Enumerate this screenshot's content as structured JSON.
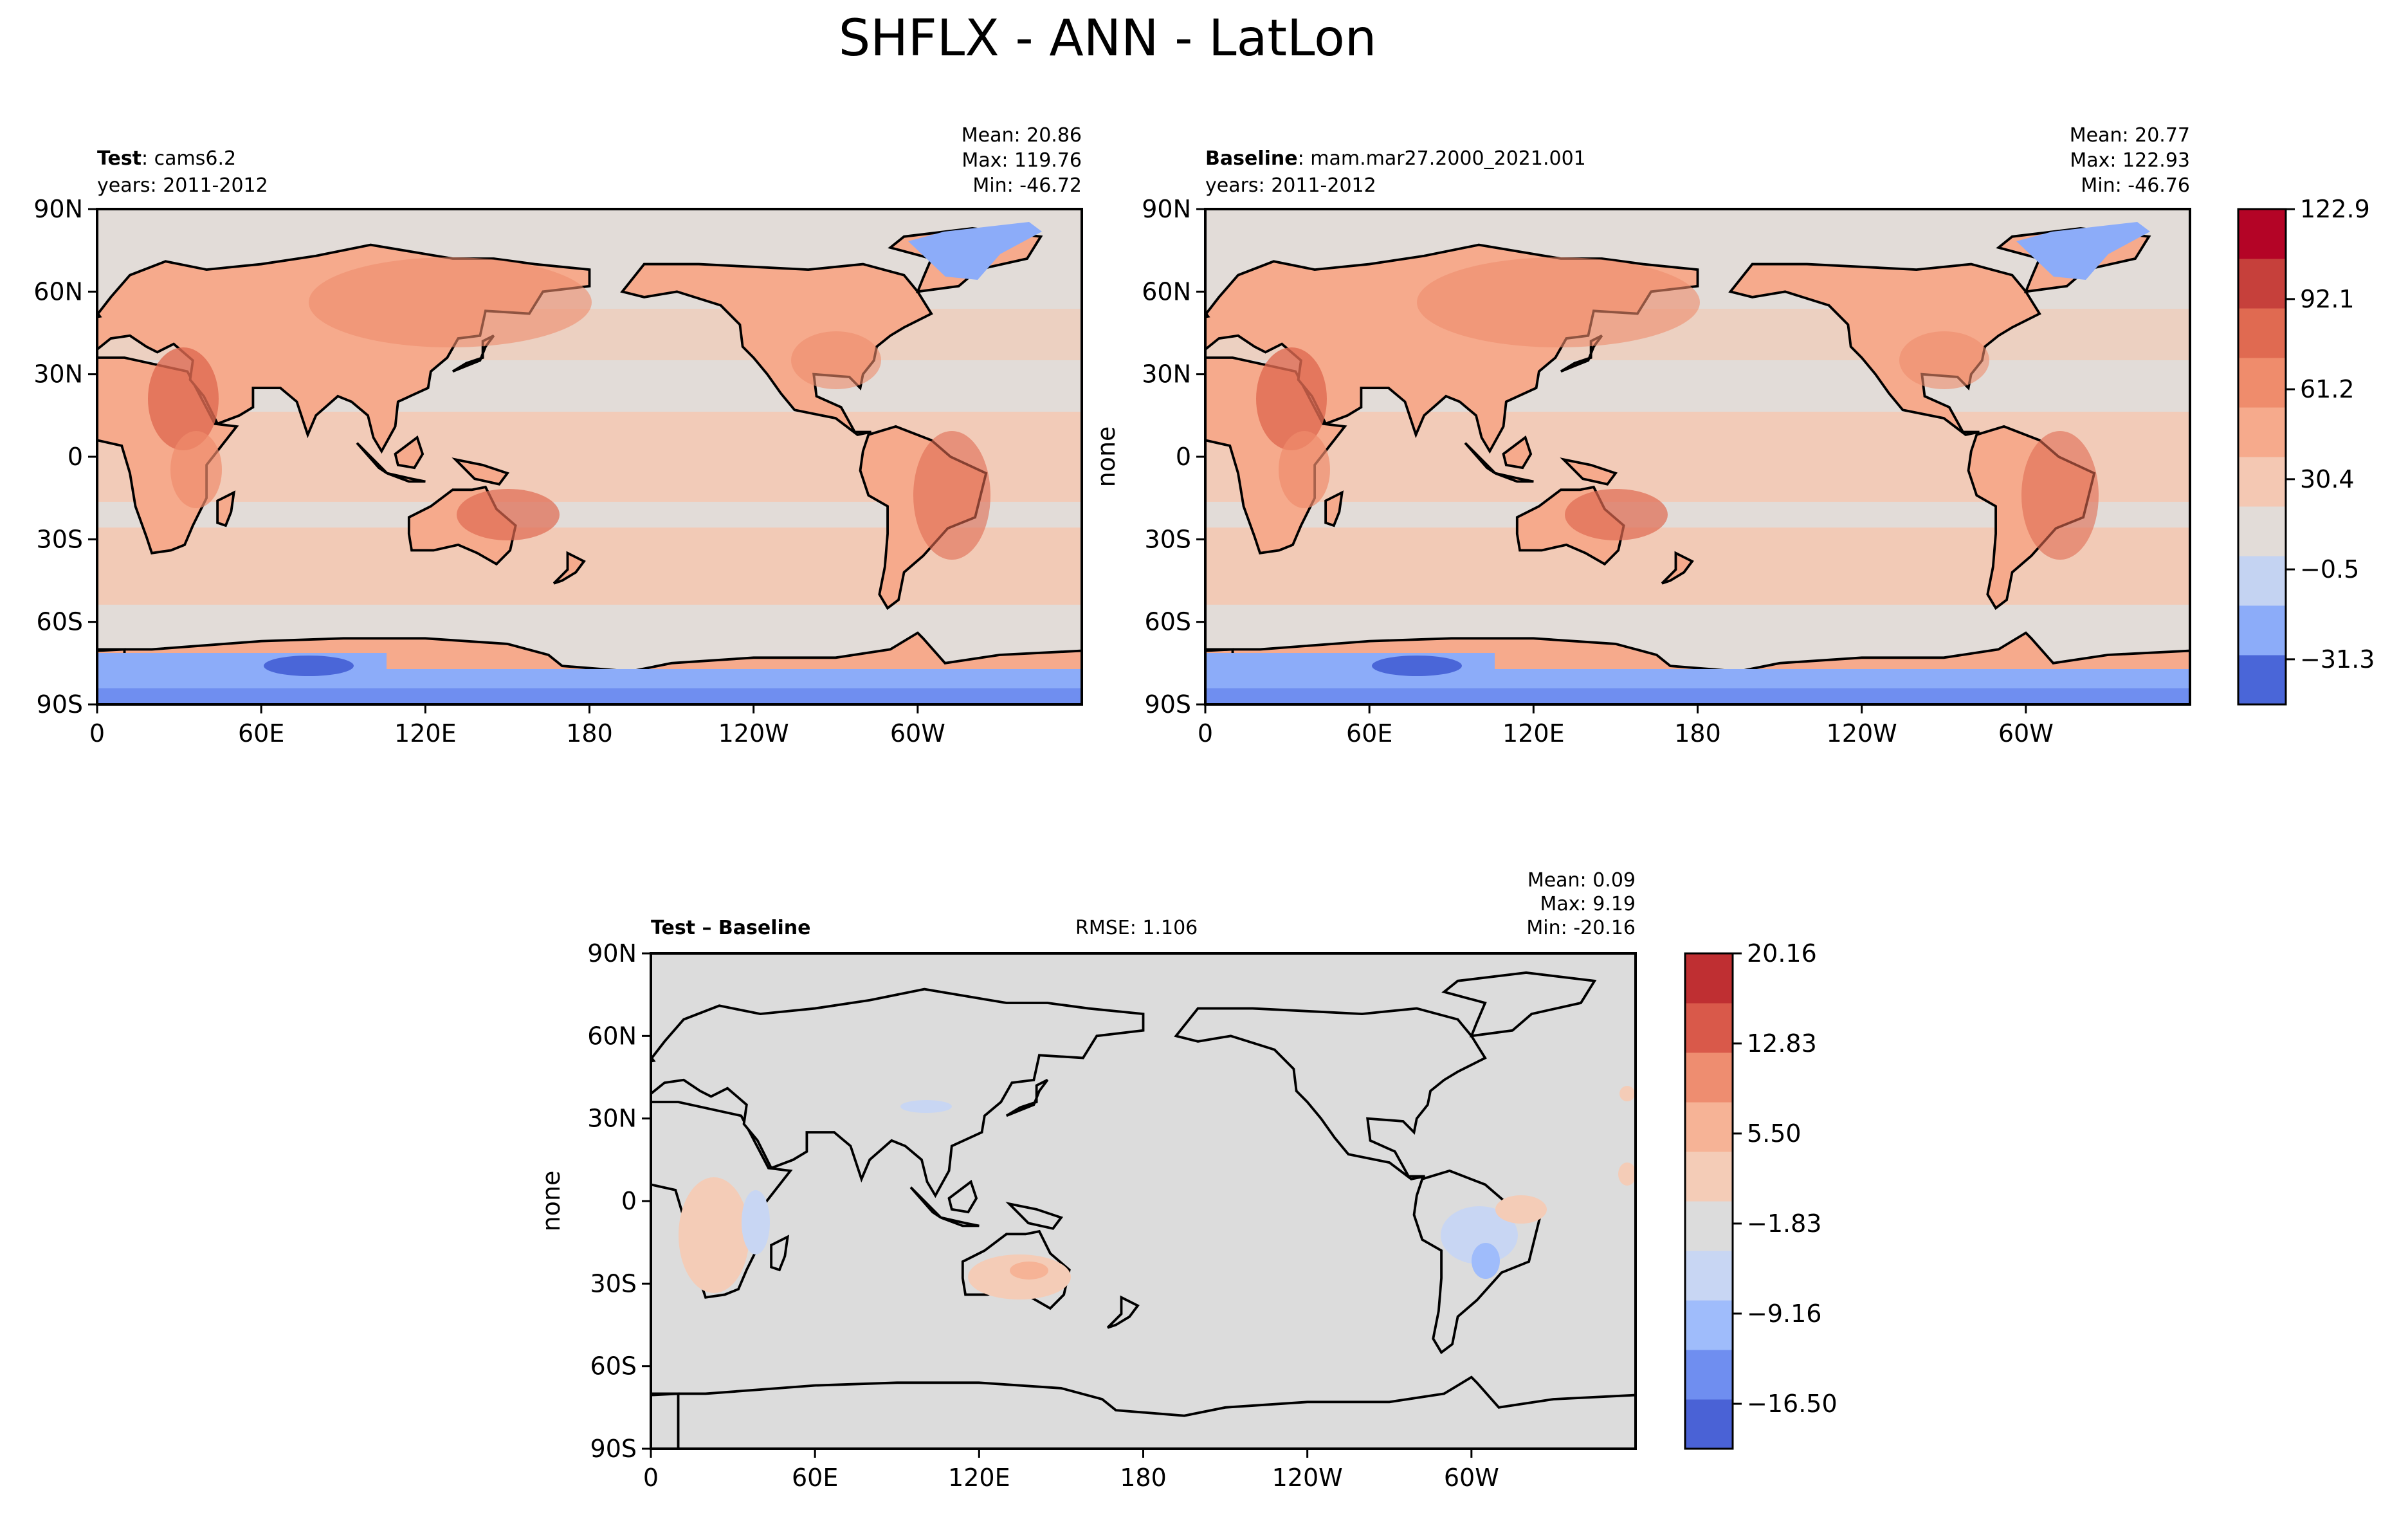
{
  "figure": {
    "title": "SHFLX - ANN - LatLon"
  },
  "panels": [
    {
      "id": "test",
      "label_bold": "Test",
      "label_rest": ": cams6.2",
      "years": "years: 2011-2012",
      "mean": "Mean: 20.86",
      "max": "Max: 119.76",
      "min": "Min: -46.72",
      "ylabel": ""
    },
    {
      "id": "baseline",
      "label_bold": "Baseline",
      "label_rest": ": mam.mar27.2000_2021.001",
      "years": "years: 2011-2012",
      "mean": "Mean: 20.77",
      "max": "Max: 122.93",
      "min": "Min: -46.76",
      "ylabel": "none"
    },
    {
      "id": "diff",
      "label_bold": "Test – Baseline",
      "label_rest": "",
      "rmse": "RMSE: 1.106",
      "mean": "Mean:  0.09",
      "max": "Max:  9.19",
      "min": "Min: -20.16",
      "ylabel": "none"
    }
  ],
  "colors": {
    "levels_main": [
      "#4a66d8",
      "#8cacf9",
      "#c4d3f2",
      "#e2dcd8",
      "#f4c8b3",
      "#f6aa8c",
      "#ef8c6c",
      "#e06a51",
      "#c6403b",
      "#b40426"
    ],
    "levels_diff": [
      "#4a62d6",
      "#6f8ef0",
      "#9fbcfb",
      "#c8d6f3",
      "#dcdcdc",
      "#f4ccb7",
      "#f6b396",
      "#ee8d70",
      "#d9594a",
      "#bf2f32"
    ],
    "coast": "#000000"
  },
  "chart_data": [
    {
      "type": "heatmap",
      "name": "Test",
      "xticks": [
        "0",
        "60E",
        "120E",
        "180",
        "120W",
        "60W"
      ],
      "yticks": [
        "90N",
        "60N",
        "30N",
        "0",
        "30S",
        "60S",
        "90S"
      ],
      "xlim": [
        0,
        360
      ],
      "ylim": [
        -90,
        90
      ],
      "mean": 20.86,
      "max": 119.76,
      "min": -46.72
    },
    {
      "type": "heatmap",
      "name": "Baseline",
      "xticks": [
        "0",
        "60E",
        "120E",
        "180",
        "120W",
        "60W"
      ],
      "yticks": [
        "90N",
        "60N",
        "30N",
        "0",
        "30S",
        "60S",
        "90S"
      ],
      "xlim": [
        0,
        360
      ],
      "ylim": [
        -90,
        90
      ],
      "mean": 20.77,
      "max": 122.93,
      "min": -46.76
    },
    {
      "type": "heatmap",
      "name": "Test – Baseline",
      "xticks": [
        "0",
        "60E",
        "120E",
        "180",
        "120W",
        "60W"
      ],
      "yticks": [
        "90N",
        "60N",
        "30N",
        "0",
        "30S",
        "60S",
        "90S"
      ],
      "xlim": [
        0,
        360
      ],
      "ylim": [
        -90,
        90
      ],
      "mean": 0.09,
      "max": 9.19,
      "min": -20.16,
      "rmse": 1.106
    }
  ],
  "colorbars": [
    {
      "id": "main",
      "ticks": [
        "122.9",
        "92.1",
        "61.2",
        "30.4",
        "−0.5",
        "−31.3"
      ],
      "tick_values": [
        122.9,
        92.1,
        61.2,
        30.4,
        -0.5,
        -31.3
      ],
      "range": [
        -46.76,
        122.93
      ]
    },
    {
      "id": "diff",
      "ticks": [
        "20.16",
        "12.83",
        "5.50",
        "−1.83",
        "−9.16",
        "−16.50"
      ],
      "tick_values": [
        20.16,
        12.83,
        5.5,
        -1.83,
        -9.16,
        -16.5
      ],
      "range": [
        -20.16,
        20.16
      ]
    }
  ]
}
